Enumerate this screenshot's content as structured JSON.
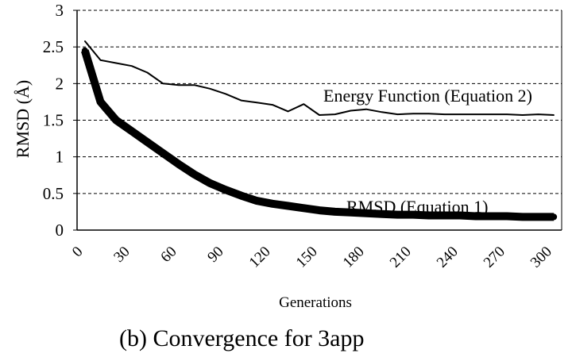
{
  "chart_data": {
    "type": "line",
    "title": "",
    "xlabel": "Generations",
    "ylabel": "RMSD (Å)",
    "xlim": [
      0,
      310
    ],
    "ylim": [
      0,
      3
    ],
    "x_ticks": [
      "0",
      "30",
      "60",
      "90",
      "120",
      "150",
      "180",
      "210",
      "240",
      "270",
      "300"
    ],
    "y_ticks": [
      "0",
      "0.5",
      "1",
      "1.5",
      "2",
      "2.5",
      "3"
    ],
    "grid": "horizontal dashed",
    "series": [
      {
        "name": "Energy Function (Equation 2)",
        "style": "thin",
        "x": [
          5,
          15,
          25,
          35,
          45,
          55,
          65,
          75,
          85,
          95,
          105,
          115,
          125,
          135,
          145,
          155,
          165,
          175,
          185,
          195,
          205,
          215,
          225,
          235,
          245,
          255,
          265,
          275,
          285,
          295,
          305
        ],
        "y": [
          2.58,
          2.32,
          2.28,
          2.24,
          2.15,
          2.0,
          1.98,
          1.98,
          1.93,
          1.86,
          1.77,
          1.74,
          1.71,
          1.62,
          1.72,
          1.57,
          1.58,
          1.63,
          1.65,
          1.61,
          1.58,
          1.59,
          1.59,
          1.58,
          1.58,
          1.58,
          1.58,
          1.58,
          1.57,
          1.58,
          1.57
        ]
      },
      {
        "name": "RMSD  (Equation 1)",
        "style": "thick",
        "x": [
          5,
          15,
          25,
          35,
          45,
          55,
          65,
          75,
          85,
          95,
          105,
          115,
          125,
          135,
          145,
          155,
          165,
          175,
          185,
          195,
          205,
          215,
          225,
          235,
          245,
          255,
          265,
          275,
          285,
          295,
          305
        ],
        "y": [
          2.45,
          1.75,
          1.5,
          1.35,
          1.2,
          1.05,
          0.9,
          0.76,
          0.64,
          0.55,
          0.47,
          0.4,
          0.36,
          0.33,
          0.3,
          0.27,
          0.25,
          0.24,
          0.23,
          0.22,
          0.21,
          0.21,
          0.2,
          0.2,
          0.2,
          0.19,
          0.19,
          0.19,
          0.18,
          0.18,
          0.18
        ]
      }
    ],
    "annotations": [
      "Energy Function (Equation 2)",
      "RMSD  (Equation 1)"
    ]
  },
  "caption": "(b) Convergence for 3app"
}
